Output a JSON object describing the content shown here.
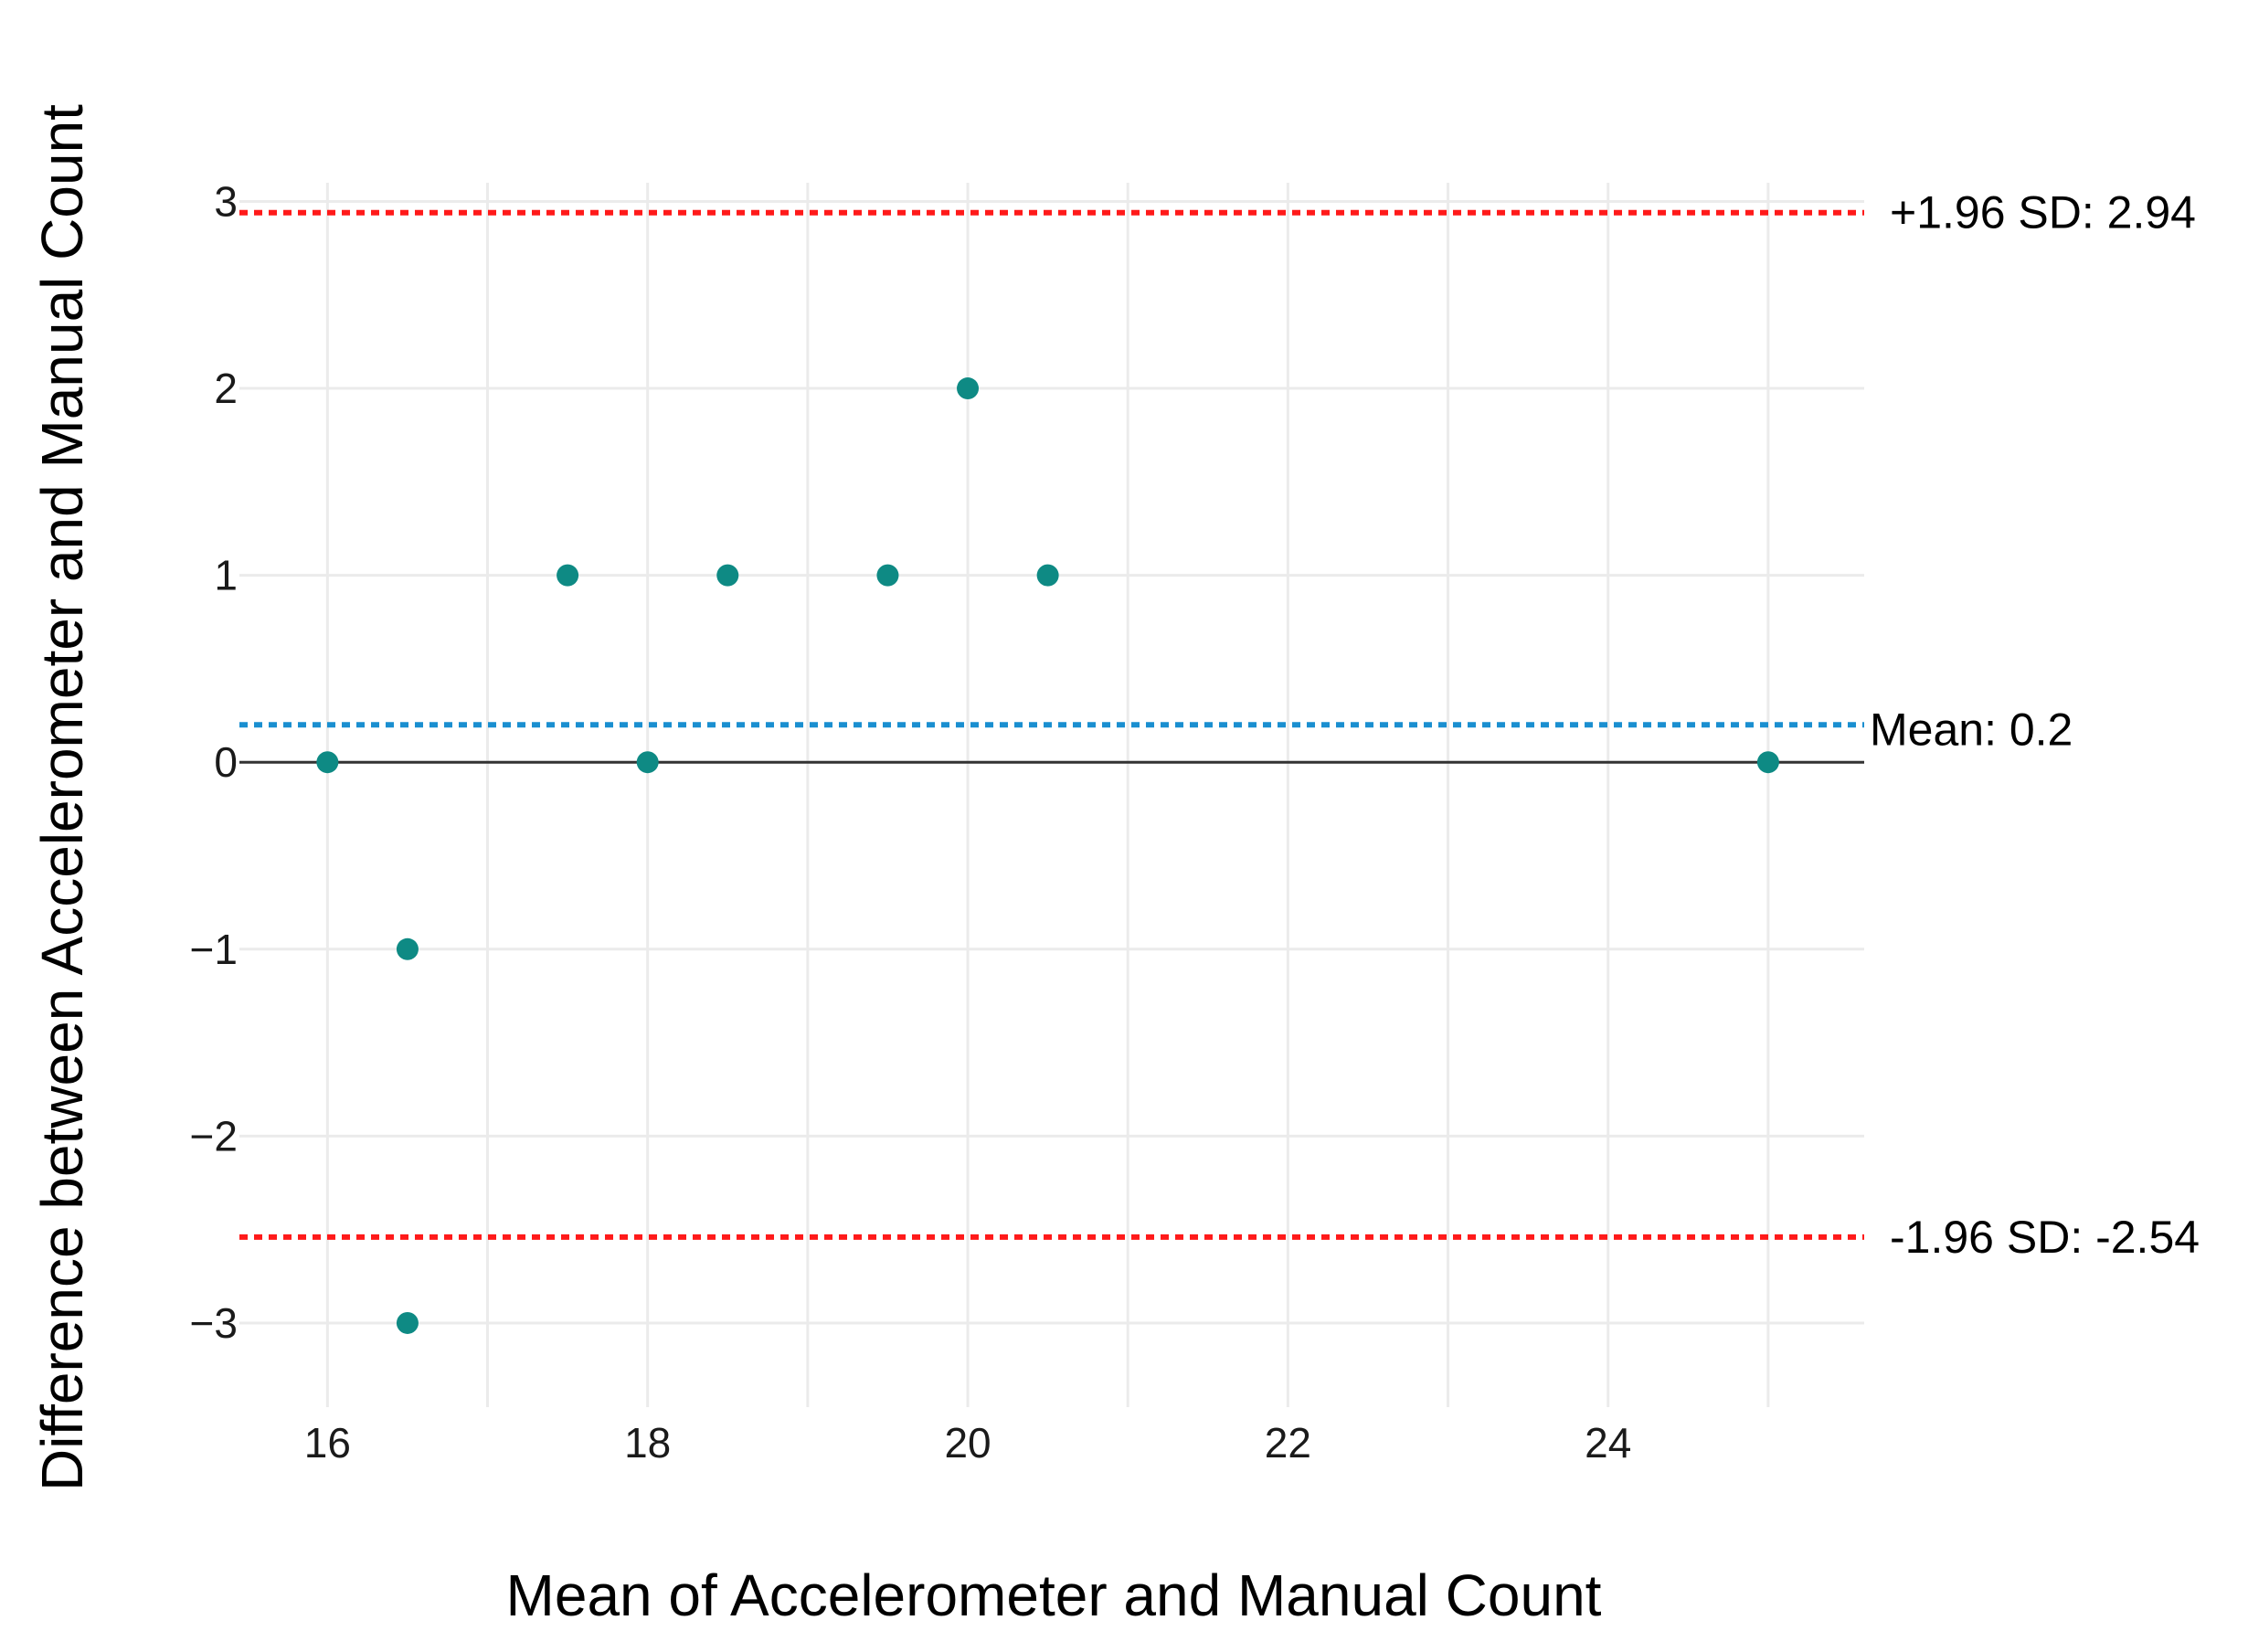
{
  "chart_data": {
    "type": "scatter",
    "title": "",
    "xlabel": "Mean of Accelerometer and Manual Count",
    "ylabel": "Difference between Accelerometer and Manual Count",
    "xlim": [
      15.45,
      25.6
    ],
    "ylim": [
      -3.45,
      3.1
    ],
    "x_ticks": [
      16,
      18,
      20,
      22,
      24
    ],
    "y_ticks": [
      3,
      2,
      1,
      0,
      -1,
      -2,
      -3
    ],
    "x_tick_labels": [
      "16",
      "18",
      "20",
      "22",
      "24"
    ],
    "y_tick_labels": [
      "3",
      "2",
      "1",
      "0",
      "−1",
      "−2",
      "−3"
    ],
    "grid": true,
    "point_color": "#0e8a84",
    "points": [
      {
        "x": 16,
        "y": 0
      },
      {
        "x": 16.5,
        "y": -1
      },
      {
        "x": 16.5,
        "y": -3
      },
      {
        "x": 17.5,
        "y": 1
      },
      {
        "x": 18,
        "y": 0
      },
      {
        "x": 18.5,
        "y": 1
      },
      {
        "x": 19.5,
        "y": 1
      },
      {
        "x": 20,
        "y": 2
      },
      {
        "x": 20.5,
        "y": 1
      },
      {
        "x": 25,
        "y": 0
      }
    ],
    "zero_line": {
      "y": 0,
      "color": "#333333"
    },
    "reference_lines": [
      {
        "name": "upper-loa",
        "value": 2.94,
        "label": "+1.96 SD: 2.94",
        "color": "#ff1a1a"
      },
      {
        "name": "mean",
        "value": 0.2,
        "label": "Mean: 0.2",
        "color": "#1a8fd0"
      },
      {
        "name": "lower-loa",
        "value": -2.54,
        "label": "-1.96 SD: -2.54",
        "color": "#ff1a1a"
      }
    ]
  }
}
